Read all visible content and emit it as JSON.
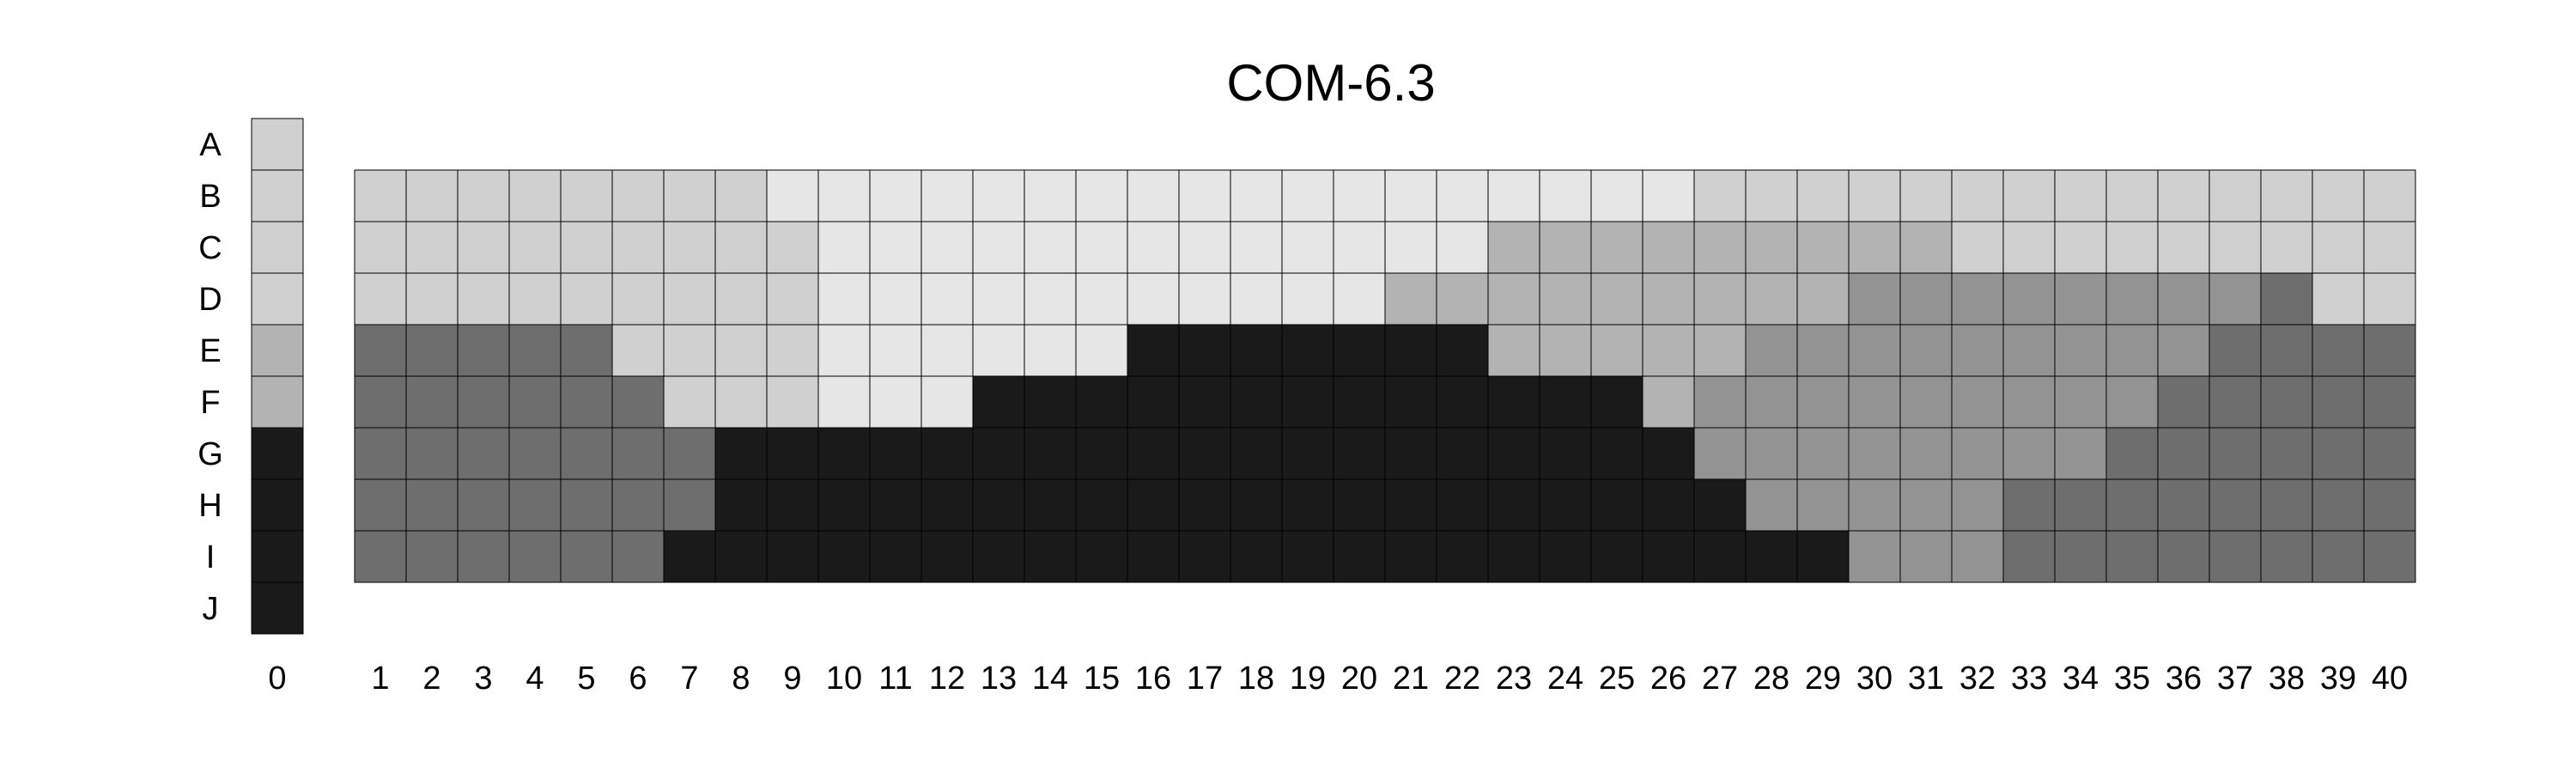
{
  "chart_data": {
    "type": "heatmap",
    "title": "COM-6.3",
    "xlabel": "",
    "ylabel": "",
    "rows": [
      "A",
      "B",
      "C",
      "D",
      "E",
      "F",
      "G",
      "H",
      "I",
      "J"
    ],
    "columns": [
      "0",
      "1",
      "2",
      "3",
      "4",
      "5",
      "6",
      "7",
      "8",
      "9",
      "10",
      "11",
      "12",
      "13",
      "14",
      "15",
      "16",
      "17",
      "18",
      "19",
      "20",
      "21",
      "22",
      "23",
      "24",
      "25",
      "26",
      "27",
      "28",
      "29",
      "30",
      "31",
      "32",
      "33",
      "34",
      "35",
      "36",
      "37",
      "38",
      "39",
      "40"
    ],
    "grid": true,
    "palette": {
      "0": "#e6e6e6",
      "1": "#d0d0d0",
      "2": "#b3b3b3",
      "3": "#939393",
      "4": "#6e6e6e",
      "5": "#1a1a1a"
    },
    "column_0": [
      1,
      1,
      1,
      1,
      2,
      2,
      5,
      5,
      5,
      5
    ],
    "grid_rows": [
      "B",
      "C",
      "D",
      "E",
      "F",
      "G",
      "H",
      "I"
    ],
    "grid_values": [
      [
        1,
        1,
        1,
        1,
        1,
        1,
        1,
        1,
        0,
        0,
        0,
        0,
        0,
        0,
        0,
        0,
        0,
        0,
        0,
        0,
        0,
        0,
        0,
        0,
        0,
        0,
        1,
        1,
        1,
        1,
        1,
        1,
        1,
        1,
        1,
        1,
        1,
        1,
        1,
        1
      ],
      [
        1,
        1,
        1,
        1,
        1,
        1,
        1,
        1,
        1,
        0,
        0,
        0,
        0,
        0,
        0,
        0,
        0,
        0,
        0,
        0,
        0,
        0,
        2,
        2,
        2,
        2,
        2,
        2,
        2,
        2,
        2,
        1,
        1,
        1,
        1,
        1,
        1,
        1,
        1,
        1
      ],
      [
        1,
        1,
        1,
        1,
        1,
        1,
        1,
        1,
        1,
        0,
        0,
        0,
        0,
        0,
        0,
        0,
        0,
        0,
        0,
        0,
        2,
        2,
        2,
        2,
        2,
        2,
        2,
        2,
        2,
        3,
        3,
        3,
        3,
        3,
        3,
        3,
        3,
        4,
        1,
        1
      ],
      [
        4,
        4,
        4,
        4,
        4,
        1,
        1,
        1,
        1,
        0,
        0,
        0,
        0,
        0,
        0,
        5,
        5,
        5,
        5,
        5,
        5,
        5,
        2,
        2,
        2,
        2,
        2,
        3,
        3,
        3,
        3,
        3,
        3,
        3,
        3,
        3,
        4,
        4,
        4,
        4
      ],
      [
        4,
        4,
        4,
        4,
        4,
        4,
        1,
        1,
        1,
        0,
        0,
        0,
        5,
        5,
        5,
        5,
        5,
        5,
        5,
        5,
        5,
        5,
        5,
        5,
        5,
        2,
        3,
        3,
        3,
        3,
        3,
        3,
        3,
        3,
        3,
        4,
        4,
        4,
        4,
        4
      ],
      [
        4,
        4,
        4,
        4,
        4,
        4,
        4,
        5,
        5,
        5,
        5,
        5,
        5,
        5,
        5,
        5,
        5,
        5,
        5,
        5,
        5,
        5,
        5,
        5,
        5,
        5,
        3,
        3,
        3,
        3,
        3,
        3,
        3,
        3,
        4,
        4,
        4,
        4,
        4,
        4
      ],
      [
        4,
        4,
        4,
        4,
        4,
        4,
        4,
        5,
        5,
        5,
        5,
        5,
        5,
        5,
        5,
        5,
        5,
        5,
        5,
        5,
        5,
        5,
        5,
        5,
        5,
        5,
        5,
        3,
        3,
        3,
        3,
        3,
        4,
        4,
        4,
        4,
        4,
        4,
        4,
        4
      ],
      [
        4,
        4,
        4,
        4,
        4,
        4,
        5,
        5,
        5,
        5,
        5,
        5,
        5,
        5,
        5,
        5,
        5,
        5,
        5,
        5,
        5,
        5,
        5,
        5,
        5,
        5,
        5,
        5,
        5,
        3,
        3,
        3,
        4,
        4,
        4,
        4,
        4,
        4,
        4,
        4
      ]
    ]
  }
}
